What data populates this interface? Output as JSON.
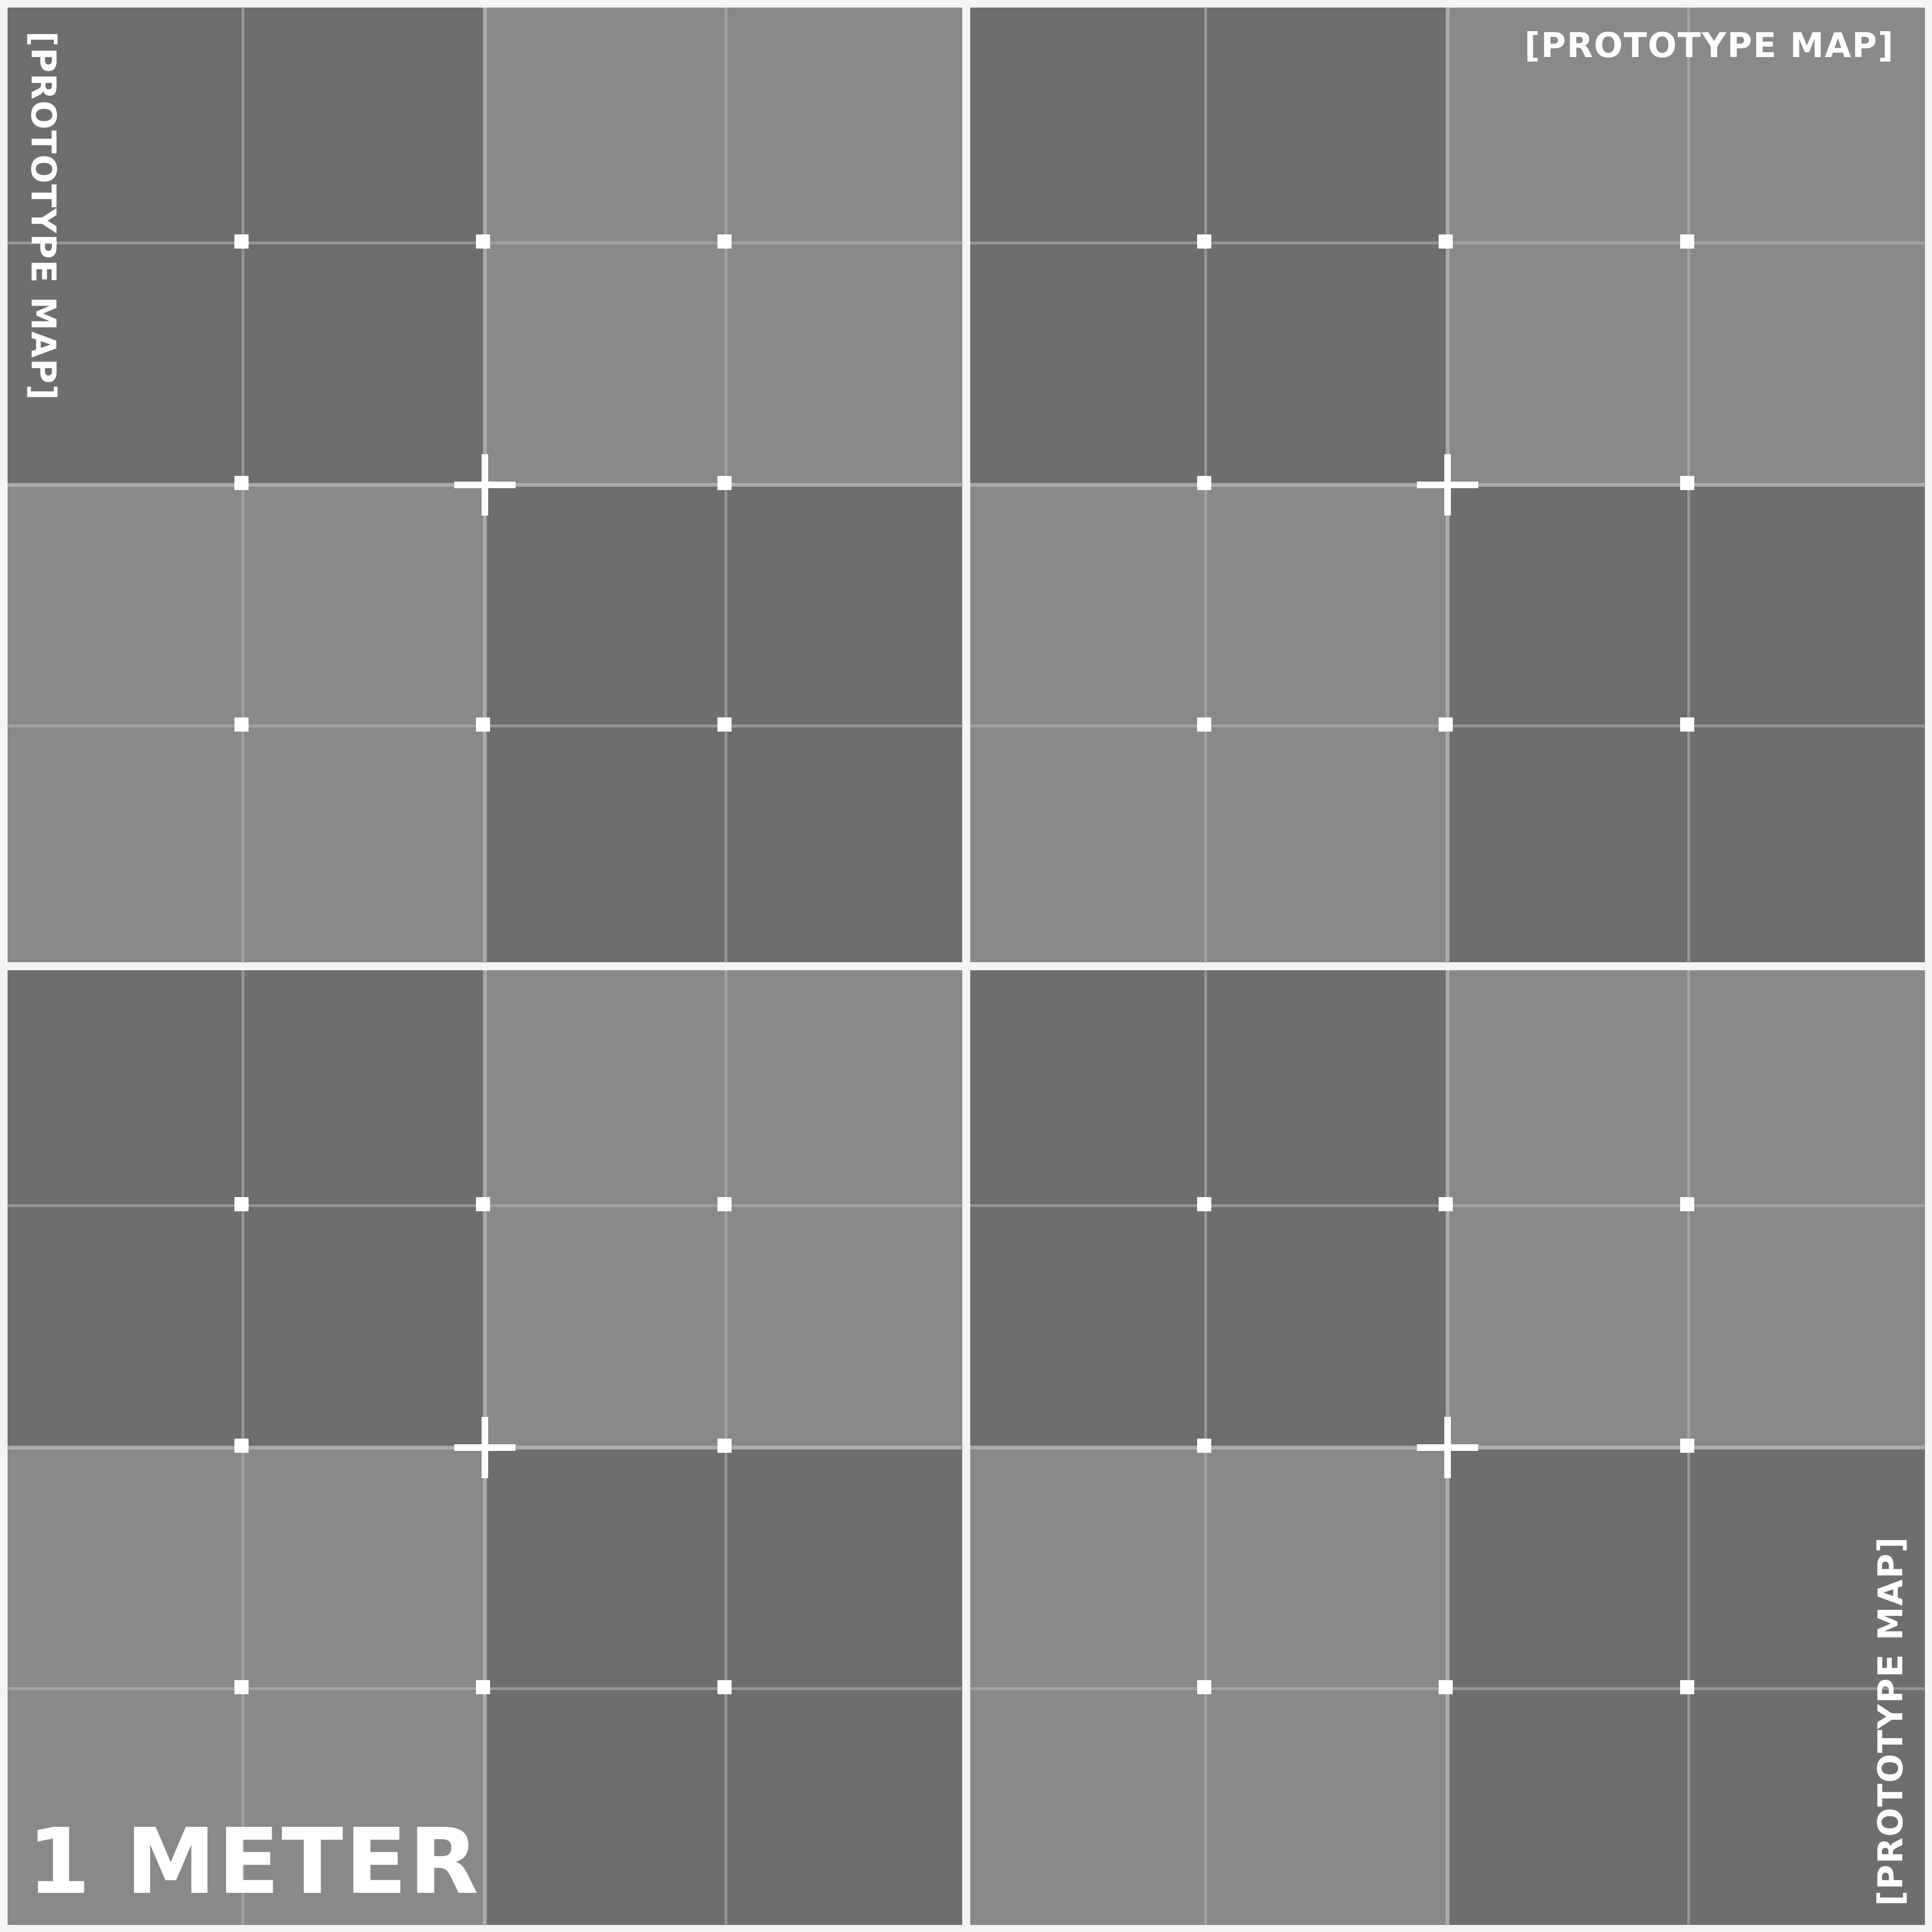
{
  "texture": {
    "stamp_text": "[PROTOTYPE MAP]",
    "scale_label": "1 METER",
    "colors": {
      "dark_tile": "#6e6e6e",
      "light_tile": "#898989",
      "border": "#f4f4f4",
      "gridline": "#b6b6b6",
      "marker": "#ffffff",
      "text": "#ffffff"
    }
  }
}
